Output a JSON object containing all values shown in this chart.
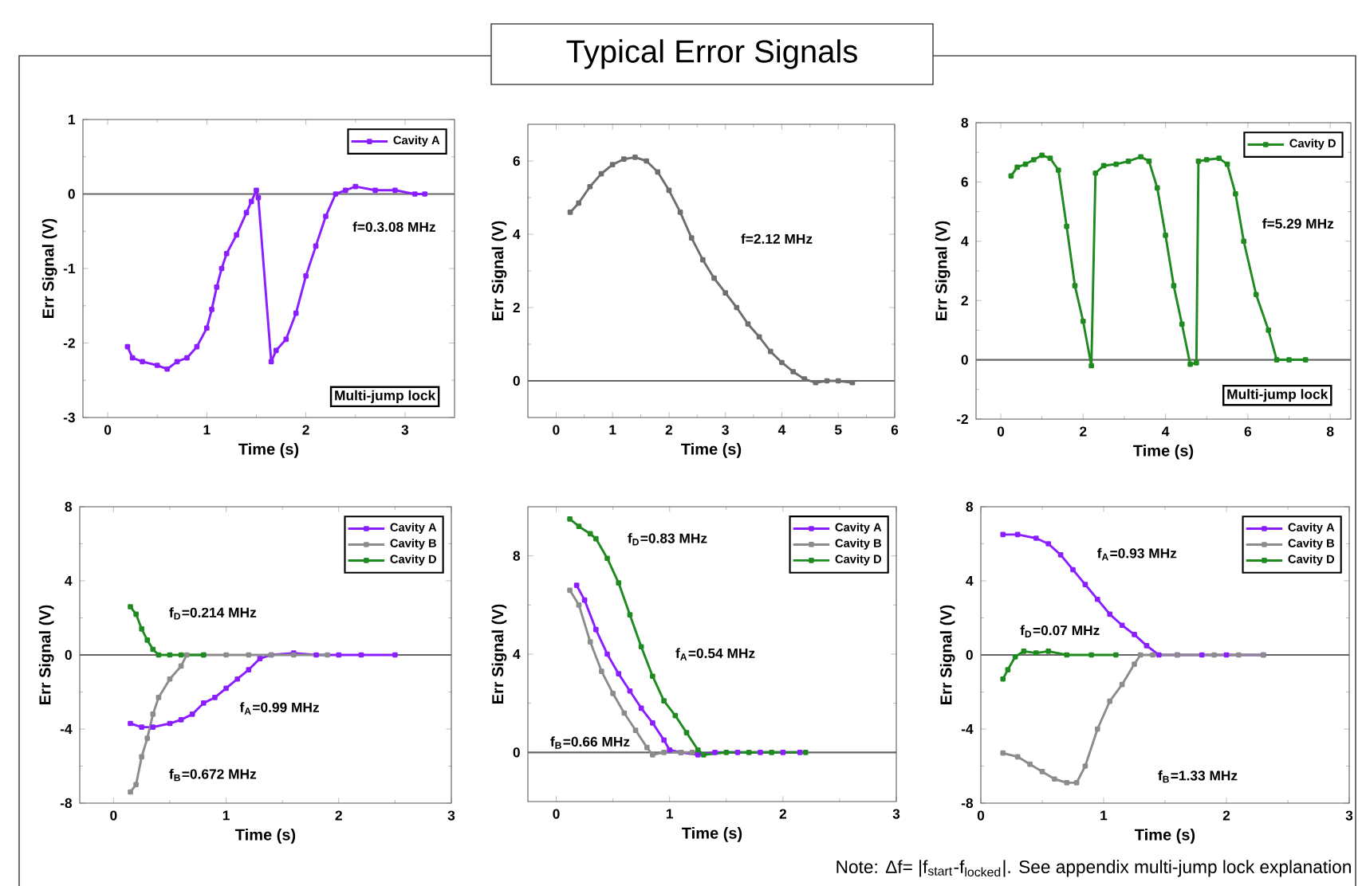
{
  "chart_data": [
    {
      "type": "other",
      "title": "Typical Error Signals",
      "annotations": [
        "Note: Δf= |f$_{start}$-f$_{locked}$|. See appendix multi-jump lock explanation"
      ]
    },
    {
      "type": "line",
      "xlabel": "Time (s)",
      "ylabel": "Err Signal (V)",
      "xlim": [
        -0.25,
        3.5
      ],
      "xticks": [
        0,
        1,
        2,
        3
      ],
      "ylim": [
        -3,
        1
      ],
      "yticks": [
        -3,
        -2,
        -1,
        0,
        1
      ],
      "marker": "square",
      "legend": "top right",
      "series": [
        {
          "name": "Cavity A",
          "color": "#8b1eff",
          "x": [
            0.2,
            0.25,
            0.35,
            0.5,
            0.6,
            0.7,
            0.8,
            0.9,
            1.0,
            1.05,
            1.1,
            1.15,
            1.2,
            1.3,
            1.4,
            1.45,
            1.5,
            1.52,
            1.65,
            1.7,
            1.8,
            1.9,
            2.0,
            2.1,
            2.2,
            2.3,
            2.4,
            2.5,
            2.7,
            2.9,
            3.1,
            3.2
          ],
          "values": [
            -2.05,
            -2.2,
            -2.25,
            -2.3,
            -2.35,
            -2.25,
            -2.2,
            -2.05,
            -1.8,
            -1.55,
            -1.25,
            -1.0,
            -0.8,
            -0.55,
            -0.25,
            -0.1,
            0.05,
            -0.05,
            -2.25,
            -2.1,
            -1.95,
            -1.6,
            -1.1,
            -0.7,
            -0.3,
            0.0,
            0.05,
            0.1,
            0.05,
            0.05,
            0.0,
            0.0
          ]
        }
      ],
      "ref_lines": [
        {
          "axis": "y",
          "value": 0,
          "color": "#666666"
        }
      ],
      "annotations": [
        "f=0.3.08 MHz",
        "Multi-jump lock"
      ]
    },
    {
      "type": "line",
      "xlabel": "Time (s)",
      "ylabel": "Err Signal (V)",
      "xlim": [
        -0.5,
        6
      ],
      "xticks": [
        0,
        1,
        2,
        3,
        4,
        5,
        6
      ],
      "ylim": [
        -1,
        7
      ],
      "yticks": [
        0,
        2,
        4,
        6
      ],
      "marker": "square",
      "series": [
        {
          "color": "#6e6e6e",
          "x": [
            0.25,
            0.4,
            0.6,
            0.8,
            1.0,
            1.2,
            1.4,
            1.6,
            1.8,
            2.0,
            2.2,
            2.4,
            2.6,
            2.8,
            3.0,
            3.2,
            3.4,
            3.6,
            3.8,
            4.0,
            4.2,
            4.4,
            4.6,
            4.8,
            5.0,
            5.25
          ],
          "values": [
            4.6,
            4.85,
            5.3,
            5.65,
            5.9,
            6.05,
            6.1,
            6.0,
            5.7,
            5.2,
            4.6,
            3.9,
            3.3,
            2.8,
            2.4,
            2.0,
            1.55,
            1.2,
            0.8,
            0.5,
            0.25,
            0.05,
            -0.05,
            0.0,
            0.0,
            -0.05
          ]
        }
      ],
      "ref_lines": [
        {
          "axis": "y",
          "value": 0,
          "color": "#666666"
        }
      ],
      "annotations": [
        "f=2.12 MHz"
      ]
    },
    {
      "type": "line",
      "xlabel": "Time (s)",
      "ylabel": "Err Signal (V)",
      "xlim": [
        -0.6,
        8.5
      ],
      "xticks": [
        0,
        2,
        4,
        6,
        8
      ],
      "ylim": [
        -2,
        8
      ],
      "yticks": [
        -2,
        0,
        2,
        4,
        6,
        8
      ],
      "marker": "square",
      "legend": "top right",
      "series": [
        {
          "name": "Cavity D",
          "color": "#1f8a1f",
          "x": [
            0.25,
            0.4,
            0.6,
            0.8,
            1.0,
            1.2,
            1.4,
            1.6,
            1.8,
            2.0,
            2.2,
            2.3,
            2.5,
            2.8,
            3.1,
            3.4,
            3.6,
            3.8,
            4.0,
            4.2,
            4.4,
            4.6,
            4.75,
            4.8,
            5.0,
            5.3,
            5.5,
            5.7,
            5.9,
            6.2,
            6.5,
            6.7,
            7.0,
            7.4
          ],
          "values": [
            6.2,
            6.5,
            6.6,
            6.75,
            6.9,
            6.8,
            6.4,
            4.5,
            2.5,
            1.3,
            -0.2,
            6.3,
            6.55,
            6.6,
            6.7,
            6.85,
            6.7,
            5.8,
            4.2,
            2.5,
            1.2,
            -0.15,
            -0.1,
            6.7,
            6.75,
            6.8,
            6.6,
            5.6,
            4.0,
            2.2,
            1.0,
            0.0,
            0.0,
            0.0
          ]
        }
      ],
      "ref_lines": [
        {
          "axis": "y",
          "value": 0,
          "color": "#666666"
        }
      ],
      "annotations": [
        "f=5.29 MHz",
        "Multi-jump lock"
      ]
    },
    {
      "type": "line",
      "xlabel": "Time (s)",
      "ylabel": "Err Signal (V)",
      "xlim": [
        -0.3,
        3
      ],
      "xticks": [
        0,
        1,
        2,
        3
      ],
      "ylim": [
        -8,
        8
      ],
      "yticks": [
        -8,
        -4,
        0,
        4,
        8
      ],
      "marker": "square",
      "legend": "top right",
      "series": [
        {
          "name": "Cavity A",
          "color": "#8b1eff",
          "x": [
            0.15,
            0.25,
            0.35,
            0.5,
            0.6,
            0.7,
            0.8,
            0.9,
            1.0,
            1.1,
            1.2,
            1.3,
            1.4,
            1.6,
            1.8,
            2.0,
            2.2,
            2.5
          ],
          "values": [
            -3.7,
            -3.9,
            -3.9,
            -3.7,
            -3.5,
            -3.2,
            -2.6,
            -2.3,
            -1.8,
            -1.3,
            -0.8,
            -0.2,
            0.0,
            0.1,
            0.0,
            0.0,
            0.0,
            0.0
          ]
        },
        {
          "name": "Cavity B",
          "color": "#8c8c8c",
          "x": [
            0.15,
            0.2,
            0.25,
            0.3,
            0.35,
            0.4,
            0.5,
            0.6,
            0.65,
            0.8,
            1.0,
            1.2,
            1.4,
            1.6,
            1.9
          ],
          "values": [
            -7.4,
            -7.0,
            -5.5,
            -4.5,
            -3.2,
            -2.3,
            -1.3,
            -0.6,
            0.0,
            0.0,
            0.0,
            0.0,
            0.0,
            0.0,
            0.0
          ]
        },
        {
          "name": "Cavity D",
          "color": "#1f8a1f",
          "x": [
            0.15,
            0.2,
            0.25,
            0.3,
            0.35,
            0.4,
            0.5,
            0.6,
            0.8
          ],
          "values": [
            2.6,
            2.2,
            1.4,
            0.8,
            0.3,
            0.0,
            0.0,
            0.0,
            0.0
          ]
        }
      ],
      "ref_lines": [
        {
          "axis": "y",
          "value": 0,
          "color": "#666666"
        }
      ],
      "annotations": [
        "f$_{D}$=0.214 MHz",
        "f$_{A}$=0.99 MHz",
        "f$_{B}$=0.672 MHz"
      ]
    },
    {
      "type": "line",
      "xlabel": "Time (s)",
      "ylabel": "Err Signal (V)",
      "xlim": [
        -0.25,
        3
      ],
      "xticks": [
        0,
        1,
        2,
        3
      ],
      "ylim": [
        -2,
        10
      ],
      "yticks": [
        0,
        4,
        8
      ],
      "marker": "square",
      "legend": "top right",
      "series": [
        {
          "name": "Cavity A",
          "color": "#8b1eff",
          "x": [
            0.18,
            0.25,
            0.35,
            0.45,
            0.55,
            0.65,
            0.75,
            0.85,
            0.95,
            1.0,
            1.1,
            1.25,
            1.4,
            1.6,
            1.8,
            2.0,
            2.15
          ],
          "values": [
            6.8,
            6.2,
            5.0,
            4.0,
            3.2,
            2.5,
            1.8,
            1.2,
            0.5,
            0.1,
            0.0,
            -0.1,
            0.0,
            0.0,
            0.0,
            0.0,
            0.0
          ]
        },
        {
          "name": "Cavity B",
          "color": "#8c8c8c",
          "x": [
            0.12,
            0.2,
            0.3,
            0.4,
            0.5,
            0.6,
            0.7,
            0.8,
            0.85,
            0.95,
            1.1,
            1.2
          ],
          "values": [
            6.6,
            6.0,
            4.5,
            3.3,
            2.4,
            1.6,
            0.9,
            0.2,
            -0.1,
            0.0,
            0.0,
            0.0
          ]
        },
        {
          "name": "Cavity D",
          "color": "#1f8a1f",
          "x": [
            0.12,
            0.2,
            0.3,
            0.35,
            0.45,
            0.55,
            0.65,
            0.75,
            0.85,
            0.95,
            1.05,
            1.15,
            1.25,
            1.3,
            1.5,
            1.7,
            1.9,
            2.2
          ],
          "values": [
            9.5,
            9.2,
            8.9,
            8.7,
            7.9,
            6.9,
            5.6,
            4.3,
            3.1,
            2.1,
            1.5,
            0.8,
            0.1,
            -0.1,
            0.0,
            0.0,
            0.0,
            0.0
          ]
        }
      ],
      "ref_lines": [
        {
          "axis": "y",
          "value": 0,
          "color": "#666666"
        }
      ],
      "annotations": [
        "f$_{D}$=0.83 MHz",
        "f$_{A}$=0.54 MHz",
        "f$_{B}$=0.66 MHz"
      ]
    },
    {
      "type": "line",
      "xlabel": "Time (s)",
      "ylabel": "Err Signal (V)",
      "xlim": [
        0,
        3
      ],
      "xticks": [
        0,
        1,
        2,
        3
      ],
      "ylim": [
        -8,
        8
      ],
      "yticks": [
        -8,
        -4,
        0,
        4,
        8
      ],
      "marker": "square",
      "legend": "top right",
      "series": [
        {
          "name": "Cavity A",
          "color": "#8b1eff",
          "x": [
            0.18,
            0.3,
            0.45,
            0.55,
            0.65,
            0.75,
            0.85,
            0.95,
            1.05,
            1.15,
            1.25,
            1.35,
            1.45,
            1.6,
            1.8,
            2.0,
            2.3
          ],
          "values": [
            6.5,
            6.5,
            6.3,
            6.0,
            5.4,
            4.6,
            3.8,
            3.0,
            2.2,
            1.6,
            1.1,
            0.5,
            0.0,
            0.0,
            0.0,
            0.0,
            0.0
          ]
        },
        {
          "name": "Cavity B",
          "color": "#8c8c8c",
          "x": [
            0.18,
            0.3,
            0.4,
            0.5,
            0.6,
            0.7,
            0.78,
            0.85,
            0.95,
            1.05,
            1.15,
            1.25,
            1.3,
            1.4,
            1.6,
            1.9,
            2.1,
            2.3
          ],
          "values": [
            -5.3,
            -5.5,
            -5.9,
            -6.3,
            -6.7,
            -6.9,
            -6.9,
            -6.0,
            -4.0,
            -2.5,
            -1.6,
            -0.5,
            0.0,
            0.0,
            0.0,
            0.0,
            0.0,
            0.0
          ]
        },
        {
          "name": "Cavity D",
          "color": "#1f8a1f",
          "x": [
            0.18,
            0.22,
            0.28,
            0.35,
            0.45,
            0.55,
            0.7,
            0.9,
            1.1
          ],
          "values": [
            -1.3,
            -0.8,
            -0.1,
            0.2,
            0.1,
            0.2,
            0.0,
            0.0,
            0.0
          ]
        }
      ],
      "ref_lines": [
        {
          "axis": "y",
          "value": 0,
          "color": "#666666"
        }
      ],
      "annotations": [
        "f$_{A}$=0.93 MHz",
        "f$_{D}$=0.07 MHz",
        "f$_{B}$=1.33 MHz"
      ]
    }
  ]
}
